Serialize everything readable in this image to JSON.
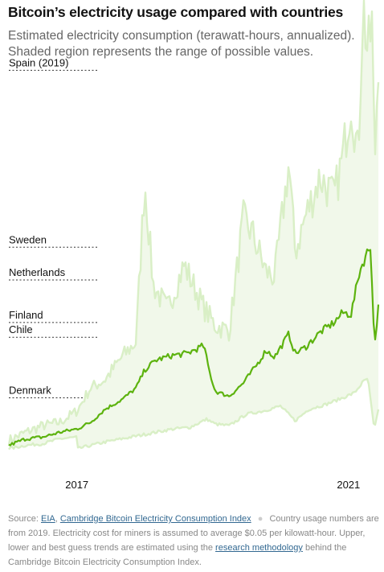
{
  "title": "Bitcoin’s electricity usage compared with countries",
  "subtitle": "Estimated electricity consumption (terawatt-hours, annualized). Shaded region represents the range of possible values.",
  "chart_data": {
    "type": "area",
    "title": "Bitcoin’s electricity usage compared with countries",
    "subtitle": "Estimated electricity consumption (terawatt-hours, annualized). Shaded region represents the range of possible values.",
    "x_tick_labels": [
      "2017",
      "2021"
    ],
    "x_domain": [
      "2016-01-01",
      "2021-06-15"
    ],
    "ylim": [
      0,
      280
    ],
    "grid": false,
    "legend": "none",
    "colors": {
      "best_guess": "#5db30f",
      "bounds": "#d9efc6",
      "range_fill": "#f1f8ea",
      "reference": "#333333"
    },
    "reference_lines": [
      {
        "label": "Spain (2019)",
        "value": 241
      },
      {
        "label": "Sweden",
        "value": 133
      },
      {
        "label": "Netherlands",
        "value": 113
      },
      {
        "label": "Finland",
        "value": 87
      },
      {
        "label": "Chile",
        "value": 78
      },
      {
        "label": "Denmark",
        "value": 41
      }
    ],
    "series": [
      {
        "role": "best",
        "x": [
          "2016-01-01",
          "2016-04-01",
          "2016-07-01",
          "2016-10-01",
          "2017-01-01",
          "2017-03-15",
          "2017-06-01",
          "2017-09-01",
          "2017-11-15",
          "2018-01-01",
          "2018-03-01",
          "2018-06-01",
          "2018-08-15",
          "2018-11-15",
          "2018-12-15",
          "2019-01-15",
          "2019-04-01",
          "2019-06-15",
          "2019-09-01",
          "2019-10-15",
          "2019-12-01",
          "2020-02-15",
          "2020-03-20",
          "2020-05-15",
          "2020-08-01",
          "2020-10-15",
          "2020-12-01",
          "2021-01-15",
          "2021-03-01",
          "2021-04-01",
          "2021-05-01",
          "2021-05-20",
          "2021-06-15"
        ],
        "y": [
          12,
          16,
          17,
          20,
          22,
          26,
          34,
          40,
          47,
          58,
          64,
          67,
          68,
          73,
          57,
          45,
          42,
          50,
          62,
          70,
          66,
          80,
          68,
          72,
          81,
          87,
          93,
          92,
          118,
          127,
          134,
          72,
          101
        ]
      },
      {
        "role": "upper",
        "x": [
          "2016-01-01",
          "2016-04-01",
          "2016-07-01",
          "2016-10-01",
          "2017-01-01",
          "2017-03-15",
          "2017-06-01",
          "2017-09-01",
          "2017-11-15",
          "2018-01-01",
          "2018-02-15",
          "2018-05-01",
          "2018-08-01",
          "2018-11-15",
          "2019-01-15",
          "2019-04-01",
          "2019-06-15",
          "2019-08-01",
          "2019-10-15",
          "2019-12-01",
          "2020-02-15",
          "2020-03-20",
          "2020-05-15",
          "2020-08-01",
          "2020-10-15",
          "2020-12-01",
          "2021-01-15",
          "2021-02-21",
          "2021-03-20",
          "2021-04-15",
          "2021-05-10",
          "2021-05-20",
          "2021-06-15"
        ],
        "y": [
          15,
          20,
          24,
          26,
          33,
          47,
          52,
          66,
          75,
          174,
          110,
          95,
          122,
          96,
          85,
          82,
          150,
          142,
          118,
          115,
          184,
          130,
          152,
          176,
          163,
          188,
          224,
          188,
          282,
          250,
          272,
          178,
          266
        ]
      },
      {
        "role": "lower",
        "x": [
          "2016-01-01",
          "2016-04-01",
          "2016-07-01",
          "2016-10-01",
          "2017-01-01",
          "2017-01-05",
          "2017-06-01",
          "2017-09-01",
          "2017-12-01",
          "2018-03-01",
          "2018-06-01",
          "2018-09-01",
          "2018-12-01",
          "2019-01-15",
          "2019-04-01",
          "2019-07-01",
          "2019-10-01",
          "2020-01-01",
          "2020-03-20",
          "2020-06-01",
          "2020-09-01",
          "2020-12-01",
          "2021-02-01",
          "2021-03-15",
          "2021-04-15",
          "2021-05-20",
          "2021-06-15"
        ],
        "y": [
          10,
          12,
          13,
          16,
          17,
          10,
          14,
          16,
          18,
          20,
          22,
          23,
          28,
          25,
          24,
          31,
          33,
          36,
          27,
          34,
          37,
          41,
          44,
          50,
          53,
          21,
          37
        ]
      }
    ]
  },
  "footnote": {
    "source_label": "Source:",
    "link_eia": "EIA",
    "separator": ",",
    "link_cambridge": "Cambridge Bitcoin Electricity Consumption Index",
    "text_1": "Country usage numbers are from 2019. Electricity cost for miners is assumed to average $0.05 per kilowatt-hour. Upper, lower and best guess trends are estimated using the",
    "link_methodology": "research methodology",
    "text_2": "behind the Cambridge Bitcoin Electricity Consumption Index."
  }
}
